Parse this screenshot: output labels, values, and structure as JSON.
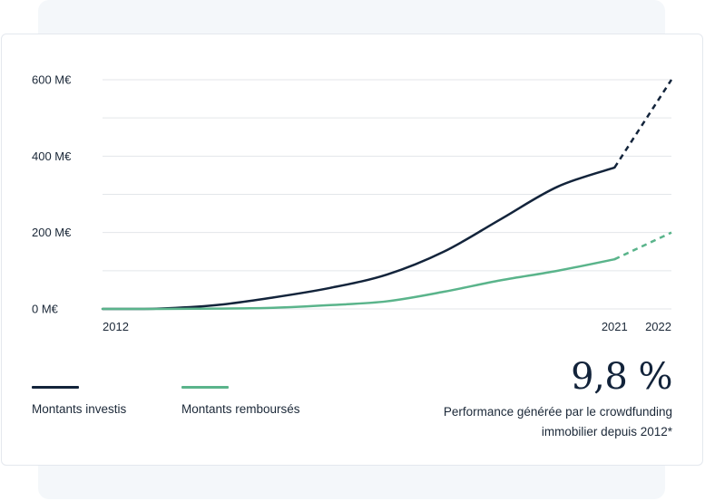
{
  "colors": {
    "invested": "#13243b",
    "repaid": "#5ab48b",
    "grid": "#e3e6ea"
  },
  "chart_data": {
    "type": "line",
    "x_axis": {
      "min": 2012,
      "max": 2022,
      "ticks": [
        "2012",
        "2021",
        "2022"
      ],
      "tick_values": [
        2012,
        2021,
        2022
      ]
    },
    "y_axis": {
      "min": 0,
      "max": 600,
      "ticks": [
        "600 M€",
        "400 M€",
        "200 M€",
        "0 M€"
      ],
      "tick_values": [
        600,
        400,
        200,
        0
      ]
    },
    "grid": true,
    "series": [
      {
        "name": "Montants investis",
        "color": "#13243b",
        "x": [
          2012,
          2013,
          2014,
          2015,
          2016,
          2017,
          2018,
          2019,
          2020,
          2021
        ],
        "y": [
          0,
          1,
          10,
          30,
          55,
          90,
          150,
          235,
          320,
          370
        ],
        "projection": {
          "x": [
            2021,
            2022
          ],
          "y": [
            370,
            600
          ]
        }
      },
      {
        "name": "Montants remboursés",
        "color": "#5ab48b",
        "x": [
          2012,
          2013,
          2014,
          2015,
          2016,
          2017,
          2018,
          2019,
          2020,
          2021
        ],
        "y": [
          0,
          0,
          1,
          3,
          10,
          20,
          45,
          75,
          100,
          130
        ],
        "projection": {
          "x": [
            2021,
            2022
          ],
          "y": [
            130,
            200
          ]
        }
      }
    ]
  },
  "legend": [
    {
      "label": "Montants investis",
      "color": "#13243b"
    },
    {
      "label": "Montants remboursés",
      "color": "#5ab48b"
    }
  ],
  "stat": {
    "value": "9,8 %",
    "caption_line1": "Performance générée par le crowdfunding",
    "caption_line2": "immobilier depuis 2012*"
  }
}
